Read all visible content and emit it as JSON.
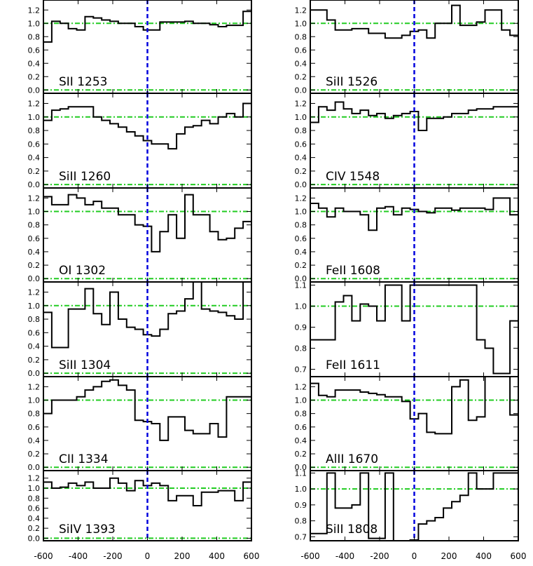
{
  "chart_data": {
    "type": "line",
    "xlim": [
      -600,
      600
    ],
    "x_ticks": [
      -600,
      -400,
      -200,
      0,
      200,
      400,
      600
    ],
    "x_tick_labels": [
      "-600",
      "-400",
      "-200",
      "0",
      "200",
      "400",
      "600"
    ],
    "x_tick_labels_right": [
      "-600",
      "-400",
      "-200",
      "0",
      "200",
      "400",
      "600"
    ],
    "bin_width": 50,
    "reference_line_x": 0,
    "colors": {
      "spectrum": "#000000",
      "continuum": "#22cc22",
      "zero_velocity": "#0000dd"
    },
    "panels": [
      {
        "label": "SII 1253",
        "column": "left",
        "row": 0,
        "ylim": [
          -0.05,
          1.35
        ],
        "yticks": [
          0.0,
          0.2,
          0.4,
          0.6,
          0.8,
          1.0,
          1.2
        ],
        "ytick_labels": [
          "0.0",
          "0.2",
          "0.4",
          "0.6",
          "0.8",
          "1.0",
          "1.2"
        ],
        "hlines": [
          0,
          1
        ],
        "values": [
          0.72,
          1.03,
          1.0,
          0.92,
          0.9,
          1.1,
          1.08,
          1.05,
          1.03,
          1.0,
          1.0,
          0.95,
          0.9,
          0.9,
          1.02,
          1.02,
          1.02,
          1.03,
          1.0,
          1.0,
          0.98,
          0.95,
          0.97,
          0.97,
          1.18
        ]
      },
      {
        "label": "SiII 1526",
        "column": "right",
        "row": 0,
        "ylim": [
          -0.05,
          1.35
        ],
        "yticks": [
          0.0,
          0.2,
          0.4,
          0.6,
          0.8,
          1.0,
          1.2
        ],
        "ytick_labels": [
          "0.0",
          "0.2",
          "0.4",
          "0.6",
          "0.8",
          "1.0",
          "1.2"
        ],
        "hlines": [
          0,
          1
        ],
        "values": [
          1.2,
          1.2,
          1.05,
          0.9,
          0.9,
          0.92,
          0.92,
          0.85,
          0.85,
          0.78,
          0.78,
          0.82,
          0.88,
          0.9,
          0.78,
          1.0,
          1.0,
          1.27,
          0.97,
          0.97,
          1.02,
          1.2,
          1.2,
          0.9,
          0.82
        ]
      },
      {
        "label": "SiII 1260",
        "column": "left",
        "row": 1,
        "ylim": [
          -0.05,
          1.35
        ],
        "yticks": [
          0.0,
          0.2,
          0.4,
          0.6,
          0.8,
          1.0,
          1.2
        ],
        "ytick_labels": [
          "0.0",
          "0.2",
          "0.4",
          "0.6",
          "0.8",
          "1.0",
          "1.2"
        ],
        "hlines": [
          0,
          1
        ],
        "values": [
          0.95,
          1.1,
          1.12,
          1.15,
          1.15,
          1.15,
          1.0,
          0.95,
          0.9,
          0.85,
          0.78,
          0.72,
          0.65,
          0.6,
          0.6,
          0.53,
          0.75,
          0.85,
          0.87,
          0.95,
          0.9,
          1.0,
          1.05,
          1.0,
          1.2
        ]
      },
      {
        "label": "CIV 1548",
        "column": "right",
        "row": 1,
        "ylim": [
          -0.05,
          1.35
        ],
        "yticks": [
          0.0,
          0.2,
          0.4,
          0.6,
          0.8,
          1.0,
          1.2
        ],
        "ytick_labels": [
          "0.0",
          "0.2",
          "0.4",
          "0.6",
          "0.8",
          "1.0",
          "1.2"
        ],
        "hlines": [
          0,
          1
        ],
        "values": [
          0.92,
          1.15,
          1.1,
          1.22,
          1.12,
          1.05,
          1.1,
          1.02,
          1.05,
          0.98,
          1.02,
          1.05,
          1.08,
          0.8,
          0.98,
          0.98,
          1.0,
          1.05,
          1.05,
          1.1,
          1.12,
          1.12,
          1.15,
          1.15,
          1.15
        ]
      },
      {
        "label": "OI 1302",
        "column": "left",
        "row": 2,
        "ylim": [
          -0.05,
          1.35
        ],
        "yticks": [
          0.0,
          0.2,
          0.4,
          0.6,
          0.8,
          1.0,
          1.2
        ],
        "ytick_labels": [
          "0.0",
          "0.2",
          "0.4",
          "0.6",
          "0.8",
          "1.0",
          "1.2"
        ],
        "hlines": [
          0,
          1
        ],
        "values": [
          1.22,
          1.1,
          1.1,
          1.25,
          1.2,
          1.1,
          1.15,
          1.05,
          1.05,
          0.95,
          0.95,
          0.8,
          0.78,
          0.4,
          0.7,
          0.95,
          0.6,
          1.25,
          0.95,
          0.95,
          0.7,
          0.58,
          0.6,
          0.75,
          0.85
        ]
      },
      {
        "label": "FeII 1608",
        "column": "right",
        "row": 2,
        "ylim": [
          -0.05,
          1.35
        ],
        "yticks": [
          0.0,
          0.2,
          0.4,
          0.6,
          0.8,
          1.0,
          1.2
        ],
        "ytick_labels": [
          "0.0",
          "0.2",
          "0.4",
          "0.6",
          "0.8",
          "1.0",
          "1.2"
        ],
        "hlines": [
          0,
          1
        ],
        "values": [
          1.12,
          1.05,
          0.92,
          1.05,
          1.0,
          1.0,
          0.95,
          0.72,
          1.05,
          1.07,
          0.95,
          1.05,
          1.03,
          1.0,
          0.98,
          1.05,
          1.05,
          1.02,
          1.05,
          1.05,
          1.05,
          1.03,
          1.2,
          1.2,
          0.95
        ]
      },
      {
        "label": "SiII 1304",
        "column": "left",
        "row": 3,
        "ylim": [
          -0.05,
          1.35
        ],
        "yticks": [
          0.0,
          0.2,
          0.4,
          0.6,
          0.8,
          1.0,
          1.2
        ],
        "ytick_labels": [
          "0.0",
          "0.2",
          "0.4",
          "0.6",
          "0.8",
          "1.0",
          "1.2"
        ],
        "hlines": [
          0,
          1
        ],
        "values": [
          0.9,
          0.38,
          0.38,
          0.95,
          0.95,
          1.25,
          0.88,
          0.72,
          1.2,
          0.8,
          0.68,
          0.65,
          0.57,
          0.55,
          0.65,
          0.88,
          0.92,
          1.1,
          1.35,
          0.95,
          0.92,
          0.9,
          0.85,
          0.8,
          1.35
        ]
      },
      {
        "label": "FeII 1611",
        "column": "right",
        "row": 3,
        "ylim": [
          0.665,
          1.115
        ],
        "yticks": [
          0.7,
          0.8,
          0.9,
          1.0,
          1.1
        ],
        "ytick_labels": [
          "0.7",
          "0.8",
          "0.9",
          "1.0",
          "1.1"
        ],
        "hlines": [
          1
        ],
        "values": [
          0.84,
          0.84,
          0.84,
          1.02,
          1.05,
          0.93,
          1.01,
          1.0,
          0.93,
          1.1,
          1.1,
          0.93,
          1.1,
          1.1,
          1.1,
          1.1,
          1.1,
          1.1,
          1.1,
          1.1,
          0.84,
          0.8,
          0.68,
          0.68,
          0.93
        ]
      },
      {
        "label": "CII 1334",
        "column": "left",
        "row": 4,
        "ylim": [
          -0.05,
          1.35
        ],
        "yticks": [
          0.0,
          0.2,
          0.4,
          0.6,
          0.8,
          1.0,
          1.2
        ],
        "ytick_labels": [
          "0.0",
          "0.2",
          "0.4",
          "0.6",
          "0.8",
          "1.0",
          "1.2"
        ],
        "hlines": [
          0,
          1
        ],
        "values": [
          0.8,
          1.0,
          1.0,
          1.0,
          1.05,
          1.15,
          1.2,
          1.28,
          1.3,
          1.22,
          1.15,
          0.7,
          0.68,
          0.65,
          0.4,
          0.75,
          0.75,
          0.55,
          0.5,
          0.5,
          0.65,
          0.45,
          1.05,
          1.05,
          1.05
        ]
      },
      {
        "label": "AlII 1670",
        "column": "right",
        "row": 4,
        "ylim": [
          -0.05,
          1.35
        ],
        "yticks": [
          0.0,
          0.2,
          0.4,
          0.6,
          0.8,
          1.0,
          1.2
        ],
        "ytick_labels": [
          "0.0",
          "0.2",
          "0.4",
          "0.6",
          "0.8",
          "1.0",
          "1.2"
        ],
        "hlines": [
          0,
          1
        ],
        "values": [
          1.25,
          1.07,
          1.05,
          1.15,
          1.15,
          1.15,
          1.12,
          1.1,
          1.08,
          1.05,
          1.05,
          0.98,
          0.72,
          0.8,
          0.52,
          0.5,
          0.5,
          1.2,
          1.3,
          0.7,
          0.75,
          1.35,
          1.35,
          1.35,
          0.78
        ]
      },
      {
        "label": "SiIV 1393",
        "column": "left",
        "row": 5,
        "ylim": [
          -0.05,
          1.35
        ],
        "yticks": [
          0.0,
          0.2,
          0.4,
          0.6,
          0.8,
          1.0,
          1.2
        ],
        "ytick_labels": [
          "0.0",
          "0.2",
          "0.4",
          "0.6",
          "0.8",
          "1.0",
          "1.2"
        ],
        "hlines": [
          0,
          1
        ],
        "values": [
          1.12,
          1.0,
          1.02,
          1.1,
          1.05,
          1.12,
          1.0,
          1.0,
          1.2,
          1.1,
          0.95,
          1.15,
          1.05,
          1.1,
          1.05,
          0.75,
          0.85,
          0.85,
          0.65,
          0.92,
          0.92,
          0.95,
          0.95,
          0.75,
          1.12
        ]
      },
      {
        "label": "SiII 1808",
        "column": "right",
        "row": 5,
        "ylim": [
          0.675,
          1.115
        ],
        "yticks": [
          0.7,
          0.8,
          0.9,
          1.0,
          1.1
        ],
        "ytick_labels": [
          "0.7",
          "0.8",
          "0.9",
          "1.0",
          "1.1"
        ],
        "hlines": [
          1
        ],
        "values": [
          0.72,
          0.72,
          1.1,
          0.88,
          0.88,
          0.9,
          1.1,
          0.69,
          0.69,
          1.1,
          0.6,
          0.6,
          0.68,
          0.78,
          0.8,
          0.82,
          0.88,
          0.92,
          0.96,
          1.1,
          1.0,
          1.0,
          1.1,
          1.1,
          1.1
        ]
      }
    ]
  }
}
